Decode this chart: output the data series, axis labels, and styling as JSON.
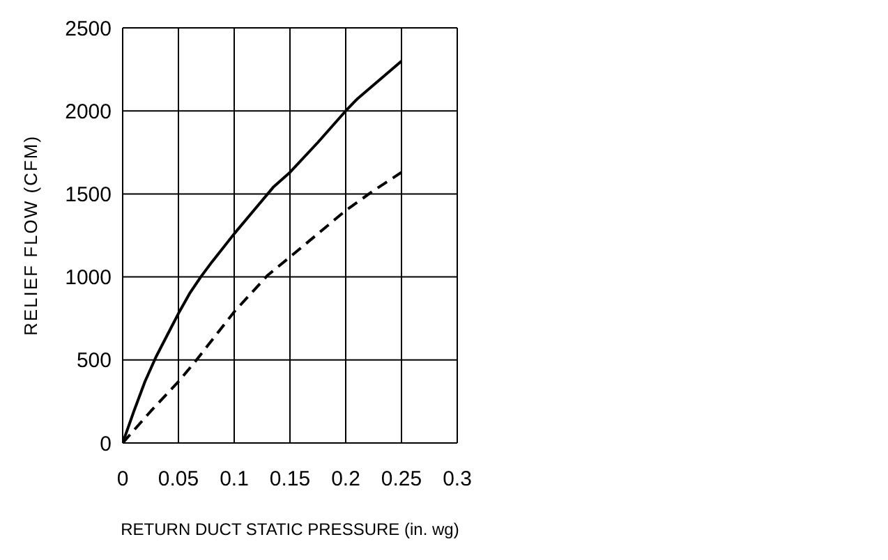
{
  "chart_data": {
    "type": "line",
    "xlabel": "RETURN DUCT STATIC PRESSURE (in. wg)",
    "ylabel": "RELIEF FLOW (CFM)",
    "xlim": [
      0,
      0.3
    ],
    "xticks": [
      0,
      0.05,
      0.1,
      0.15,
      0.2,
      0.25,
      0.3
    ],
    "ylim": [
      0,
      2500
    ],
    "yticks": [
      0,
      500,
      1000,
      1500,
      2000,
      2500
    ],
    "grid": true,
    "marker": "none",
    "series": [
      {
        "color": "#000000",
        "line_style": "dashed",
        "x": [
          0,
          0.025,
          0.05,
          0.065,
          0.1,
          0.13,
          0.15,
          0.2,
          0.225,
          0.25
        ],
        "values": [
          0,
          190,
          370,
          490,
          790,
          1010,
          1120,
          1400,
          1520,
          1630
        ]
      },
      {
        "color": "#000000",
        "line_style": "solid",
        "x": [
          0,
          0.01,
          0.02,
          0.03,
          0.04,
          0.05,
          0.06,
          0.07,
          0.08,
          0.1,
          0.12,
          0.135,
          0.15,
          0.175,
          0.2,
          0.21,
          0.25
        ],
        "values": [
          0,
          190,
          370,
          520,
          650,
          780,
          900,
          1000,
          1090,
          1260,
          1420,
          1540,
          1630,
          1810,
          2000,
          2070,
          2300
        ]
      }
    ]
  }
}
